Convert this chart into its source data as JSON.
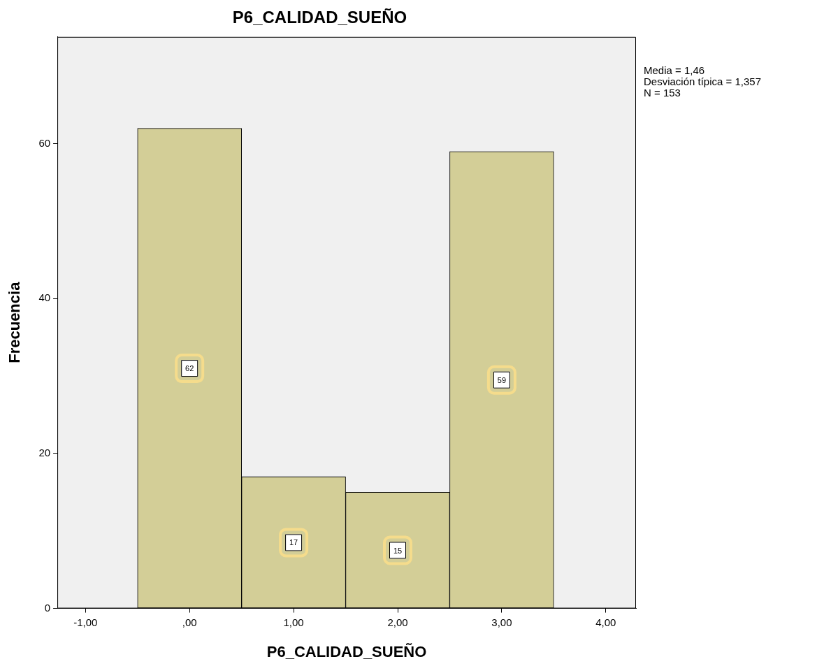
{
  "chart_data": {
    "type": "histogram",
    "title": "P6_CALIDAD_SUEÑO",
    "xlabel": "P6_CALIDAD_SUEÑO",
    "ylabel": "Frecuencia",
    "bins": [
      -0.5,
      0.5,
      1.5,
      2.5,
      3.5
    ],
    "values": [
      62,
      17,
      15,
      59
    ],
    "color": "#d3ce97",
    "xlim": [
      -1.27,
      4.29
    ],
    "xticks": [
      {
        "value": -1,
        "label": "-1,00"
      },
      {
        "value": 0,
        "label": ",00"
      },
      {
        "value": 1,
        "label": "1,00"
      },
      {
        "value": 2,
        "label": "2,00"
      },
      {
        "value": 3,
        "label": "3,00"
      },
      {
        "value": 4,
        "label": "4,00"
      }
    ],
    "ylim": [
      0,
      73.8
    ],
    "yticks": [
      0,
      20,
      40,
      60
    ],
    "grid": false,
    "legend": false,
    "data_labels": true,
    "annotations": [
      "Media = 1,46",
      "Desviación típica = 1,357",
      "N = 153"
    ]
  }
}
